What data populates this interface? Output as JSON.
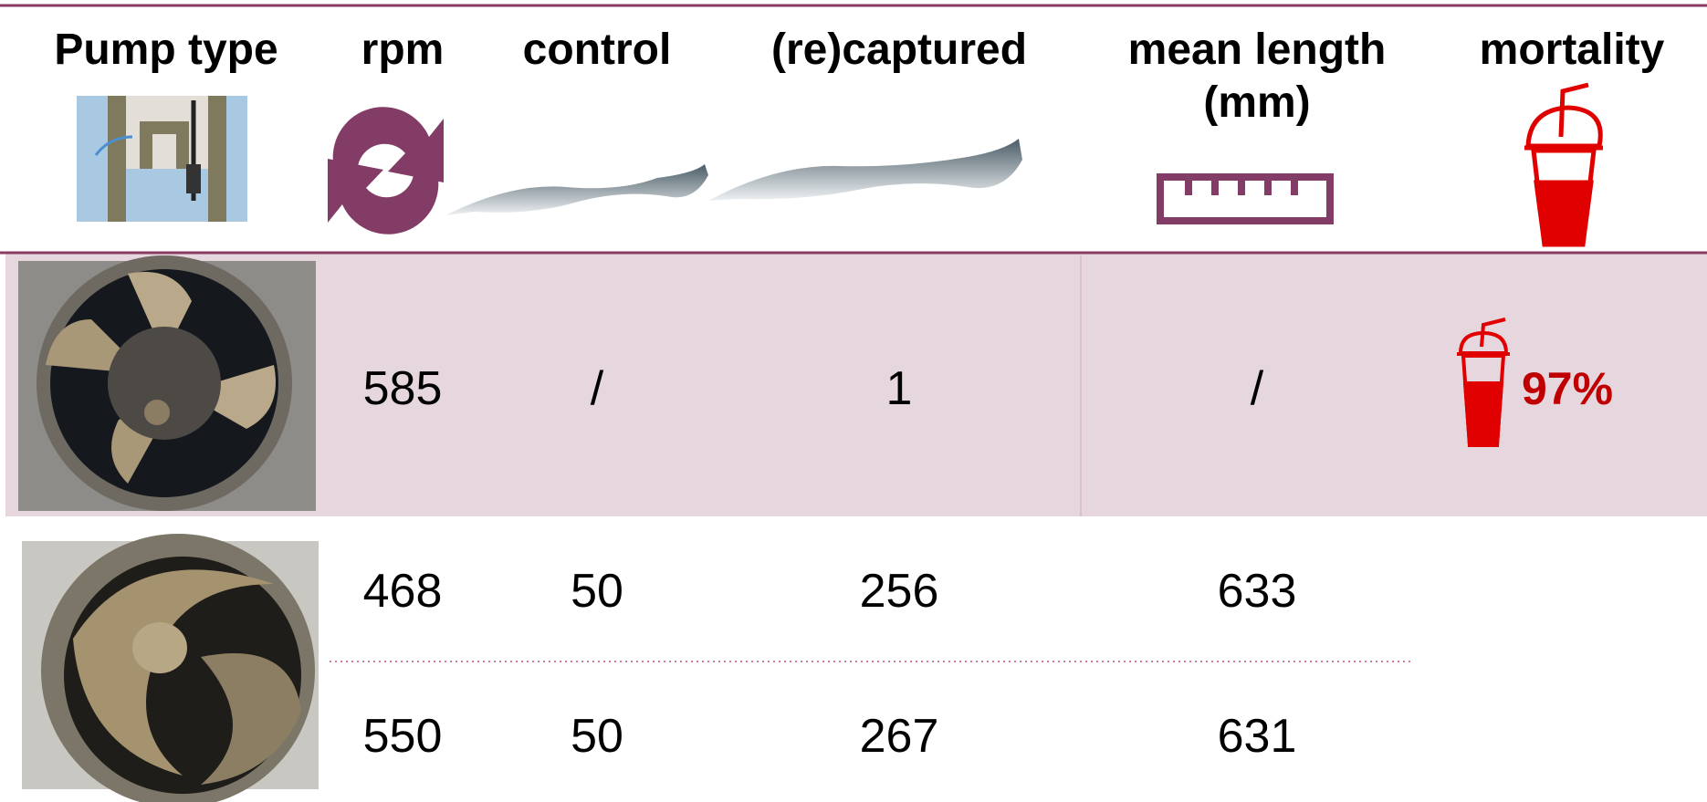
{
  "table": {
    "header": [
      "Pump type",
      "rpm",
      "control",
      "(re)captured",
      "mean length (mm)",
      "mortality"
    ],
    "rows": [
      [
        "585",
        "/",
        "1",
        "/",
        "97%"
      ],
      [
        "468",
        "50",
        "256",
        "633"
      ],
      [
        "550",
        "50",
        "267",
        "631"
      ]
    ]
  }
}
